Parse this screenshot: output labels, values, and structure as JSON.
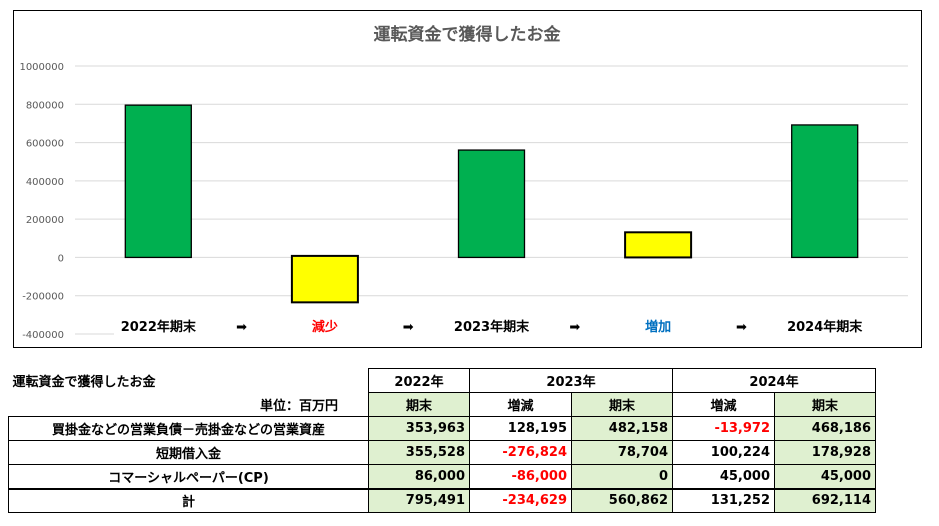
{
  "chart_data": {
    "type": "bar",
    "title": "運転資金で獲得したお金",
    "categories": [
      "2022年期末",
      "減少",
      "2023年期末",
      "増加",
      "2024年期末"
    ],
    "values": [
      795491,
      -234629,
      560862,
      131252,
      692114
    ],
    "bar_colors": [
      "#00b050",
      "#ffff00",
      "#00b050",
      "#ffff00",
      "#00b050"
    ],
    "label_colors": [
      "#000000",
      "#ff0000",
      "#000000",
      "#0070c0",
      "#000000"
    ],
    "arrow": "➡",
    "yticks": [
      1000000,
      800000,
      600000,
      400000,
      200000,
      0,
      -200000,
      -400000
    ],
    "ylim": [
      -400000,
      1000000
    ],
    "grid": true,
    "xlabel": "",
    "ylabel": ""
  },
  "table": {
    "title": "運転資金で獲得したお金",
    "unit": "単位：百万円",
    "years": [
      "2022年",
      "2023年",
      "2024年"
    ],
    "subheaders": [
      "期末",
      "増減",
      "期末",
      "増減",
      "期末"
    ],
    "rows": [
      {
        "label": "買掛金などの営業負債－売掛金などの営業資産",
        "values": [
          "353,963",
          "128,195",
          "482,158",
          "-13,972",
          "468,186"
        ]
      },
      {
        "label": "短期借入金",
        "values": [
          "355,528",
          "-276,824",
          "78,704",
          "100,224",
          "178,928"
        ]
      },
      {
        "label": "コマーシャルペーパー(CP)",
        "values": [
          "86,000",
          "-86,000",
          "0",
          "45,000",
          "45,000"
        ]
      },
      {
        "label": "計",
        "values": [
          "795,491",
          "-234,629",
          "560,862",
          "131,252",
          "692,114"
        ]
      }
    ]
  }
}
